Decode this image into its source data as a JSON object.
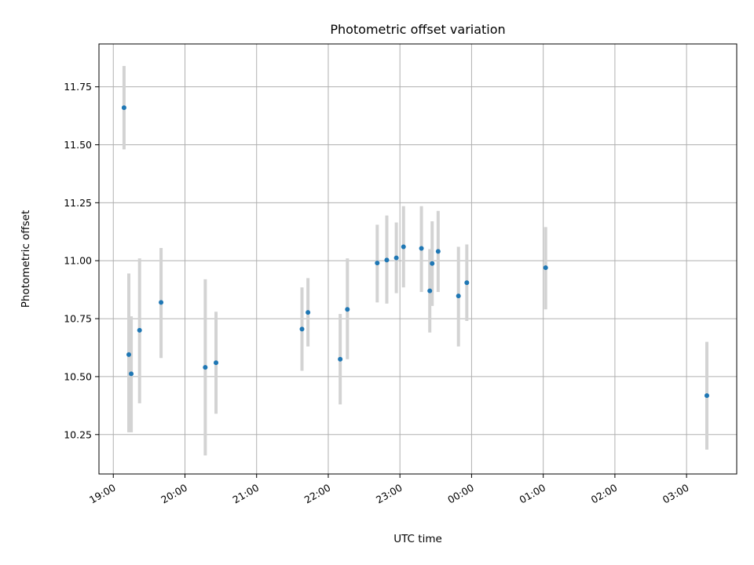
{
  "chart_data": {
    "type": "scatter",
    "title": "Photometric offset variation",
    "xlabel": "UTC time",
    "ylabel": "Photometric offset",
    "x_is_time": true,
    "x_start": "19:00",
    "xlim": [
      "18:48",
      "03:42"
    ],
    "ylim": [
      10.08,
      11.935
    ],
    "grid": true,
    "x_tick_labels": [
      "19:00",
      "20:00",
      "21:00",
      "22:00",
      "23:00",
      "00:00",
      "01:00",
      "02:00",
      "03:00"
    ],
    "y_ticks": [
      10.25,
      10.5,
      10.75,
      11.0,
      11.25,
      11.5,
      11.75
    ],
    "y_tick_labels": [
      "10.25",
      "10.50",
      "10.75",
      "11.00",
      "11.25",
      "11.50",
      "11.75"
    ],
    "marker_color": "#1f77b4",
    "errorbar_color": "#d3d3d3",
    "series": [
      {
        "points": [
          {
            "x": "19:09",
            "y": 11.66,
            "err_low": 11.48,
            "err_high": 11.84
          },
          {
            "x": "19:13",
            "y": 10.595,
            "err_low": 10.26,
            "err_high": 10.945
          },
          {
            "x": "19:15",
            "y": 10.512,
            "err_low": 10.26,
            "err_high": 10.76
          },
          {
            "x": "19:22",
            "y": 10.7,
            "err_low": 10.385,
            "err_high": 11.01
          },
          {
            "x": "19:40",
            "y": 10.82,
            "err_low": 10.58,
            "err_high": 11.055
          },
          {
            "x": "20:17",
            "y": 10.54,
            "err_low": 10.16,
            "err_high": 10.92
          },
          {
            "x": "20:26",
            "y": 10.56,
            "err_low": 10.34,
            "err_high": 10.78
          },
          {
            "x": "21:38",
            "y": 10.705,
            "err_low": 10.525,
            "err_high": 10.885
          },
          {
            "x": "21:43",
            "y": 10.777,
            "err_low": 10.63,
            "err_high": 10.925
          },
          {
            "x": "22:10",
            "y": 10.575,
            "err_low": 10.38,
            "err_high": 10.77
          },
          {
            "x": "22:16",
            "y": 10.79,
            "err_low": 10.575,
            "err_high": 11.01
          },
          {
            "x": "22:41",
            "y": 10.99,
            "err_low": 10.82,
            "err_high": 11.155
          },
          {
            "x": "22:49",
            "y": 11.003,
            "err_low": 10.815,
            "err_high": 11.195
          },
          {
            "x": "22:57",
            "y": 11.012,
            "err_low": 10.86,
            "err_high": 11.165
          },
          {
            "x": "23:03",
            "y": 11.06,
            "err_low": 10.885,
            "err_high": 11.235
          },
          {
            "x": "23:18",
            "y": 11.053,
            "err_low": 10.865,
            "err_high": 11.235
          },
          {
            "x": "23:25",
            "y": 10.87,
            "err_low": 10.69,
            "err_high": 11.05
          },
          {
            "x": "23:27",
            "y": 10.988,
            "err_low": 10.805,
            "err_high": 11.17
          },
          {
            "x": "23:32",
            "y": 11.04,
            "err_low": 10.865,
            "err_high": 11.215
          },
          {
            "x": "23:49",
            "y": 10.848,
            "err_low": 10.63,
            "err_high": 11.06
          },
          {
            "x": "23:56",
            "y": 10.905,
            "err_low": 10.74,
            "err_high": 11.07
          },
          {
            "x": "01:02",
            "y": 10.97,
            "err_low": 10.79,
            "err_high": 11.145
          },
          {
            "x": "03:17",
            "y": 10.418,
            "err_low": 10.185,
            "err_high": 10.65
          }
        ]
      }
    ]
  }
}
